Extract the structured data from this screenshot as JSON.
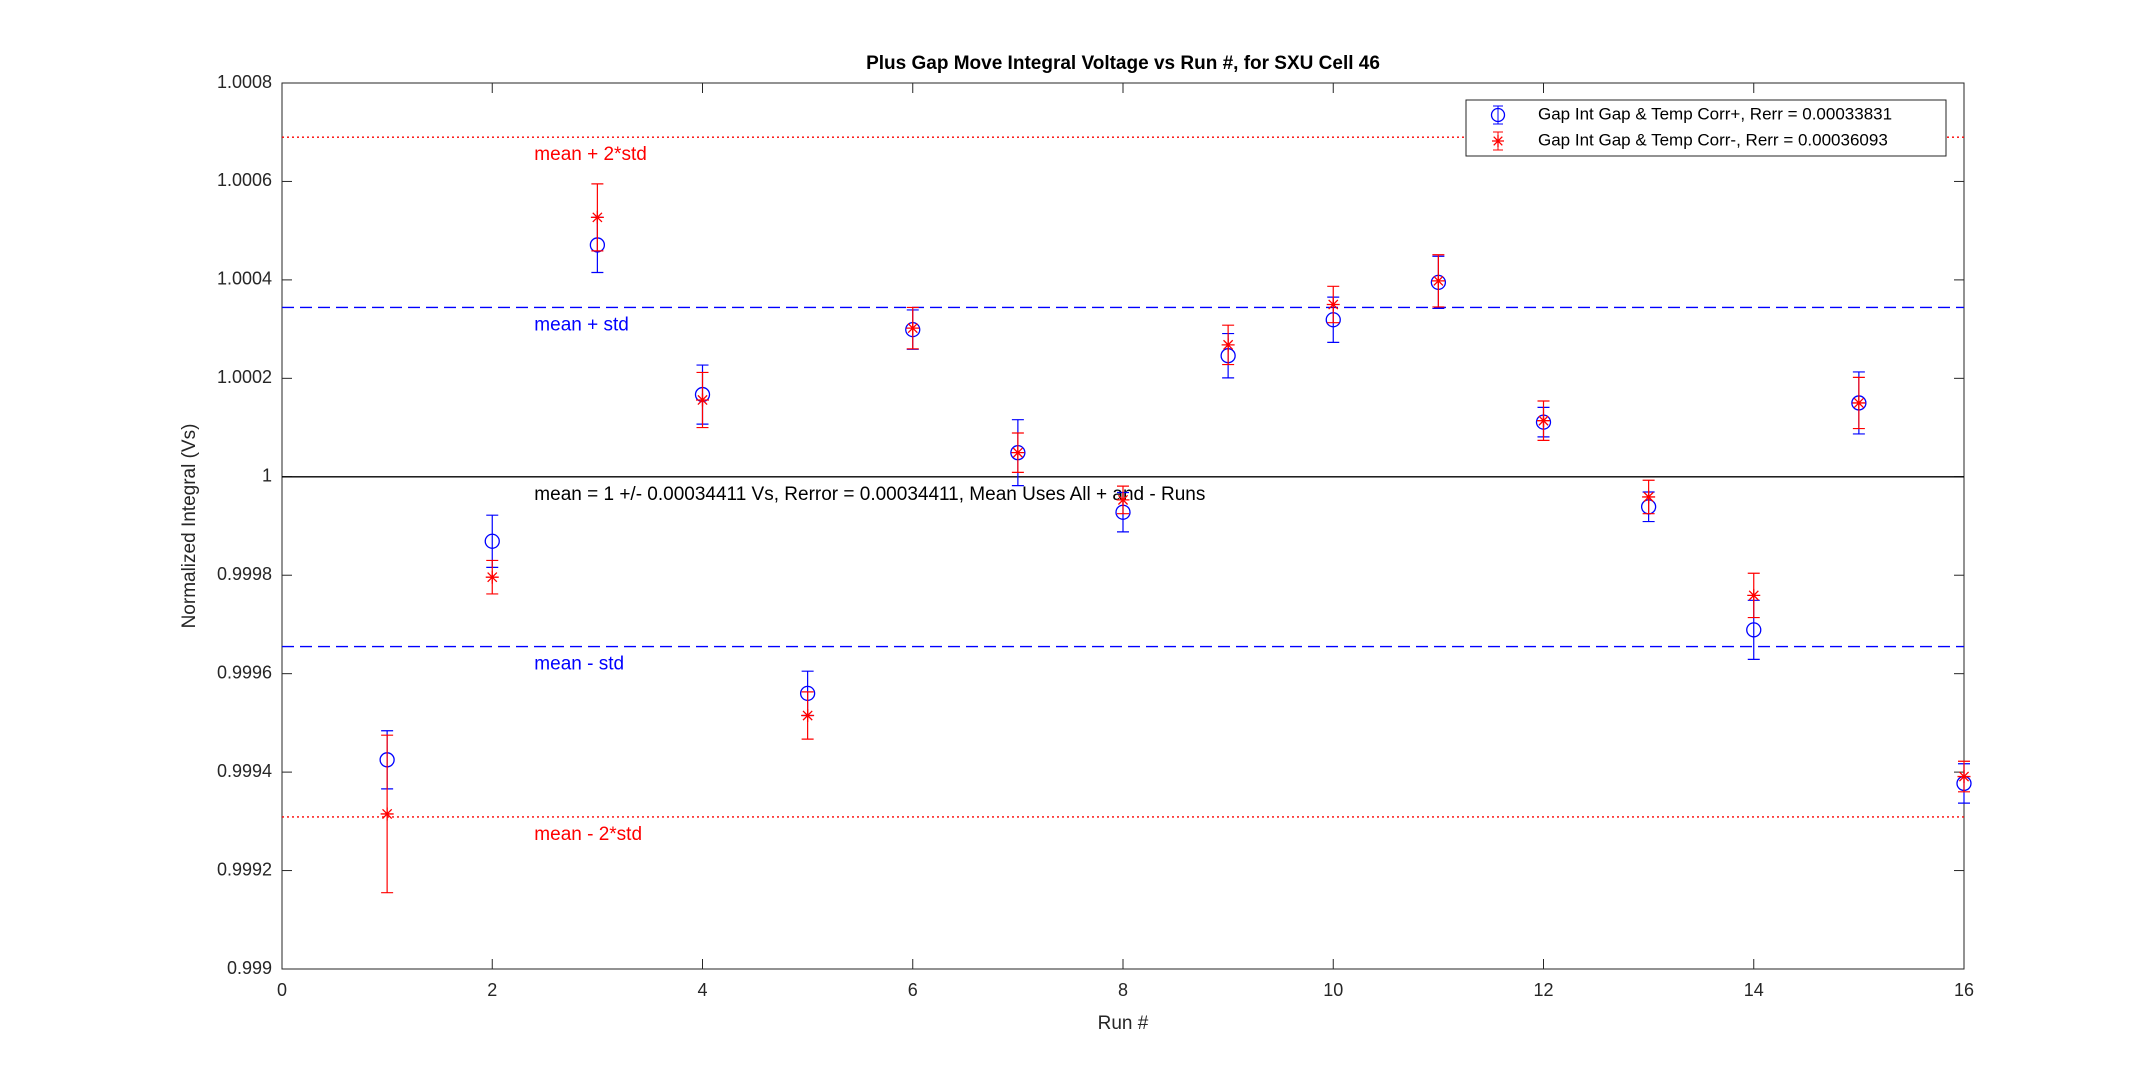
{
  "chart_data": {
    "type": "errorbar",
    "title": "Plus Gap Move Integral Voltage vs Run #, for SXU Cell 46",
    "x_label": "Run #",
    "y_label": "Normalized Integral (Vs)",
    "x": [
      1,
      2,
      3,
      4,
      5,
      6,
      7,
      8,
      9,
      10,
      11,
      12,
      13,
      14,
      15,
      16
    ],
    "series": [
      {
        "name": "Gap Int Gap & Temp Corr+, Rerr = 0.00033831",
        "color": "#0000ff",
        "marker": "circle",
        "values": [
          0.999425,
          0.999869,
          1.000471,
          1.000167,
          0.99956,
          1.000299,
          1.000049,
          0.999928,
          1.000246,
          1.000319,
          1.000395,
          1.000111,
          0.999939,
          0.999689,
          1.00015,
          0.999377
        ],
        "errors": [
          5.9e-05,
          5.3e-05,
          5.6e-05,
          6e-05,
          4.5e-05,
          4e-05,
          6.7e-05,
          4e-05,
          4.5e-05,
          4.6e-05,
          5.3e-05,
          3e-05,
          3e-05,
          6e-05,
          6.3e-05,
          4e-05
        ]
      },
      {
        "name": "Gap Int Gap & Temp  Corr-, Rerr = 0.00036093",
        "color": "#ff0000",
        "marker": "star",
        "values": [
          0.999315,
          0.999796,
          1.000527,
          1.000156,
          0.999515,
          1.000302,
          1.000049,
          0.999953,
          1.000268,
          1.00035,
          1.000398,
          1.000114,
          0.999959,
          0.999759,
          1.00015,
          0.999391
        ],
        "errors": [
          0.00016,
          3.4e-05,
          6.8e-05,
          5.6e-05,
          4.8e-05,
          4.2e-05,
          4e-05,
          2.8e-05,
          4e-05,
          3.7e-05,
          5.3e-05,
          4e-05,
          3.4e-05,
          4.5e-05,
          5.2e-05,
          3.1e-05
        ]
      }
    ],
    "reference_lines": [
      {
        "value": 1.00069,
        "label": "mean + 2*std",
        "color": "#ff0000",
        "style": "dotted"
      },
      {
        "value": 1.000344,
        "label": "mean + std",
        "color": "#0000ff",
        "style": "dashed"
      },
      {
        "value": 1,
        "label": "mean = 1 +/- 0.00034411 Vs, Rerror = 0.00034411, Mean Uses All + and - Runs",
        "color": "#000000",
        "style": "solid"
      },
      {
        "value": 0.999655,
        "label": "mean - std",
        "color": "#0000ff",
        "style": "dashed"
      },
      {
        "value": 0.999309,
        "label": "mean - 2*std",
        "color": "#ff0000",
        "style": "dotted"
      }
    ],
    "xlim": [
      0,
      16
    ],
    "xticks": [
      0,
      2,
      4,
      6,
      8,
      10,
      12,
      14,
      16
    ],
    "ylim": [
      0.999,
      1.0008
    ],
    "yticks": [
      0.999,
      0.9992,
      0.9994,
      0.9996,
      0.9998,
      1,
      1.0002,
      1.0004,
      1.0006,
      1.0008
    ],
    "legend": "top-right"
  }
}
